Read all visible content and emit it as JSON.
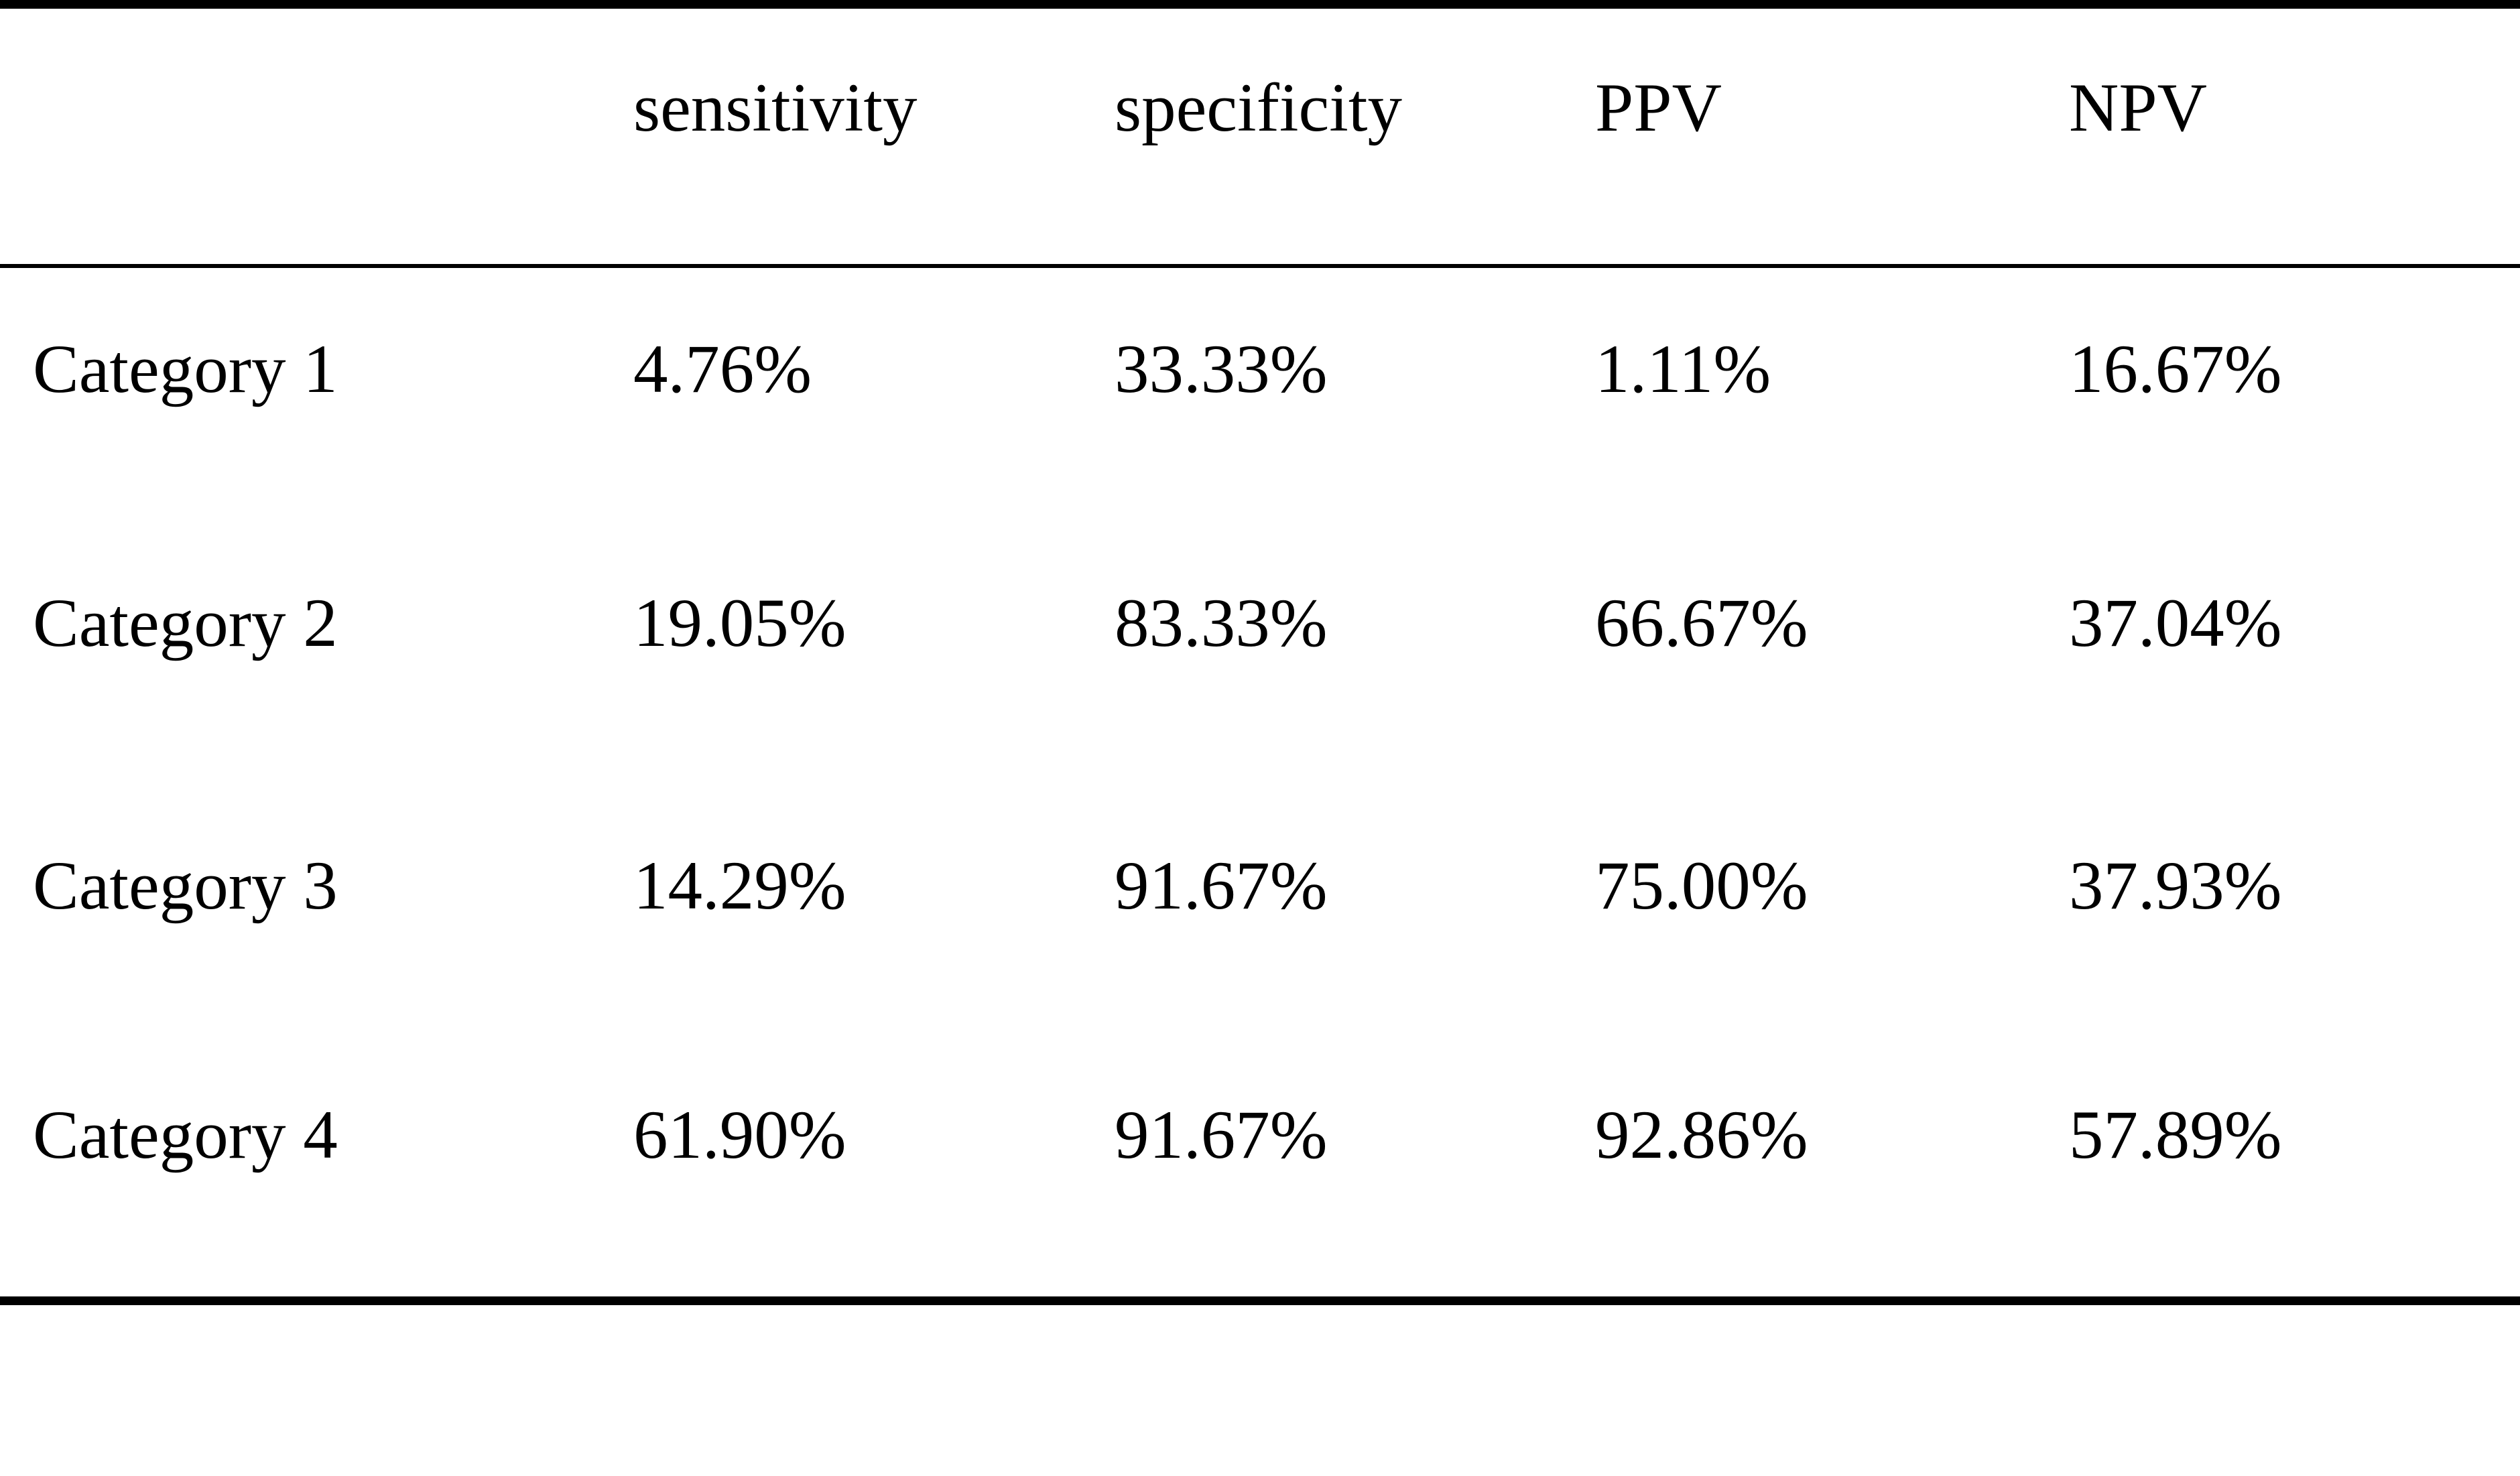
{
  "table": {
    "headers": [
      "",
      "sensitivity",
      "specificity",
      "PPV",
      "NPV"
    ],
    "rows": [
      {
        "cells": [
          "Category 1",
          "4.76%",
          "33.33%",
          "1.11%",
          "16.67%"
        ]
      },
      {
        "cells": [
          "Category 2",
          "19.05%",
          "83.33%",
          "66.67%",
          "37.04%"
        ]
      },
      {
        "cells": [
          "Category 3",
          "14.29%",
          "91.67%",
          "75.00%",
          "37.93%"
        ]
      },
      {
        "cells": [
          "Category 4",
          "61.90%",
          "91.67%",
          "92.86%",
          "57.89%"
        ]
      }
    ]
  },
  "chart_data": {
    "type": "table",
    "columns": [
      "",
      "sensitivity",
      "specificity",
      "PPV",
      "NPV"
    ],
    "rows": [
      [
        "Category 1",
        "4.76%",
        "33.33%",
        "1.11%",
        "16.67%"
      ],
      [
        "Category 2",
        "19.05%",
        "83.33%",
        "66.67%",
        "37.04%"
      ],
      [
        "Category 3",
        "14.29%",
        "91.67%",
        "75.00%",
        "37.93%"
      ],
      [
        "Category 4",
        "61.90%",
        "91.67%",
        "92.86%",
        "57.89%"
      ]
    ],
    "notes_colors": {
      "text": "#000000",
      "background": "#ffffff",
      "rules": "#000000"
    }
  }
}
